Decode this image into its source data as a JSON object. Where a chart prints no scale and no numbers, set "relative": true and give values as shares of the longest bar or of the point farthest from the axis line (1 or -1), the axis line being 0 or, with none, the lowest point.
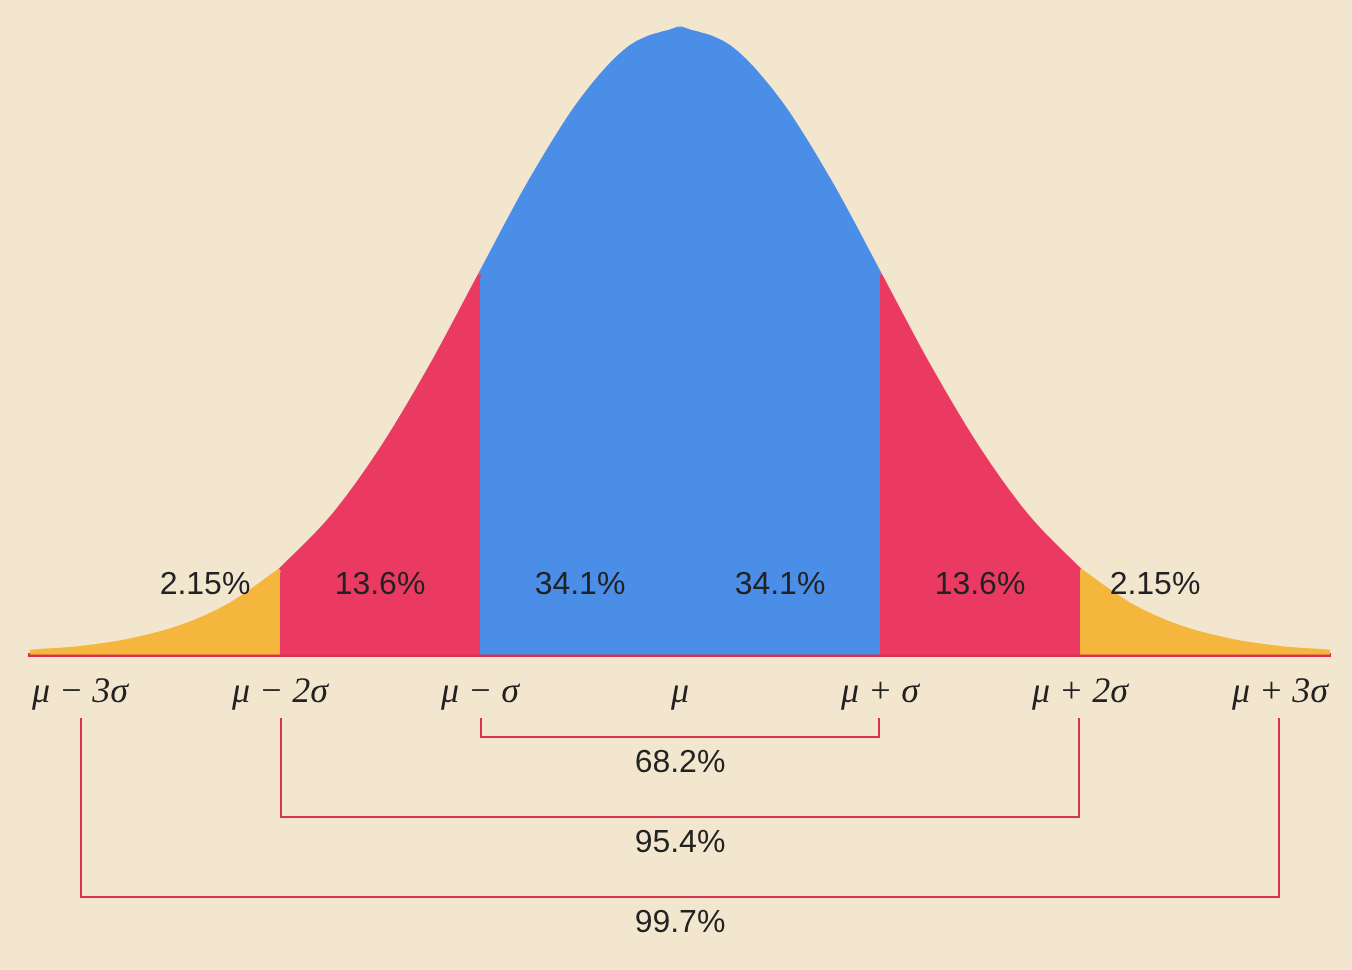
{
  "chart_data": {
    "type": "area",
    "relative": true,
    "legend": false,
    "grid": false,
    "categories": [
      null,
      "μ − 3σ",
      null,
      null,
      null,
      "μ − 2σ",
      null,
      null,
      null,
      "μ − σ",
      null,
      null,
      null,
      "μ",
      null,
      null,
      null,
      "μ + σ",
      null,
      null,
      null,
      "μ + 2σ",
      null,
      null,
      null,
      "μ + 3σ",
      null
    ],
    "series": [
      {
        "name": "2.15%",
        "color": "#f4b63c",
        "values": [
          0.005,
          0.011,
          0.023,
          0.044,
          0.08,
          0.135,
          null,
          null,
          null,
          null,
          null,
          null,
          null,
          null,
          null,
          null,
          null,
          null,
          null,
          null,
          null,
          null,
          null,
          null,
          null,
          null,
          null
        ]
      },
      {
        "name": "13.6%",
        "color": "#ea3a62",
        "values": [
          null,
          null,
          null,
          null,
          null,
          0.135,
          0.216,
          0.325,
          0.458,
          0.607,
          null,
          null,
          null,
          null,
          null,
          null,
          null,
          null,
          null,
          null,
          null,
          null,
          null,
          null,
          null,
          null,
          null
        ]
      },
      {
        "name": "34.1%",
        "color": "#4a8ee8",
        "values": [
          null,
          null,
          null,
          null,
          null,
          null,
          null,
          null,
          null,
          0.607,
          0.755,
          0.882,
          0.969,
          1,
          null,
          null,
          null,
          null,
          null,
          null,
          null,
          null,
          null,
          null,
          null,
          null,
          null
        ]
      },
      {
        "name": "34.1%",
        "color": "#4a8ee8",
        "values": [
          null,
          null,
          null,
          null,
          null,
          null,
          null,
          null,
          null,
          null,
          null,
          null,
          null,
          1,
          0.969,
          0.882,
          0.755,
          0.607,
          null,
          null,
          null,
          null,
          null,
          null,
          null,
          null,
          null
        ]
      },
      {
        "name": "13.6%",
        "color": "#ea3a62",
        "values": [
          null,
          null,
          null,
          null,
          null,
          null,
          null,
          null,
          null,
          null,
          null,
          null,
          null,
          null,
          null,
          null,
          null,
          0.607,
          0.458,
          0.325,
          0.216,
          0.135,
          null,
          null,
          null,
          null,
          null
        ]
      },
      {
        "name": "2.15%",
        "color": "#f4b63c",
        "values": [
          null,
          null,
          null,
          null,
          null,
          null,
          null,
          null,
          null,
          null,
          null,
          null,
          null,
          null,
          null,
          null,
          null,
          null,
          null,
          null,
          null,
          0.135,
          0.08,
          0.044,
          0.023,
          0.011,
          0.005
        ]
      }
    ],
    "annotations": [
      "68.2%",
      "95.4%",
      "99.7%"
    ]
  }
}
